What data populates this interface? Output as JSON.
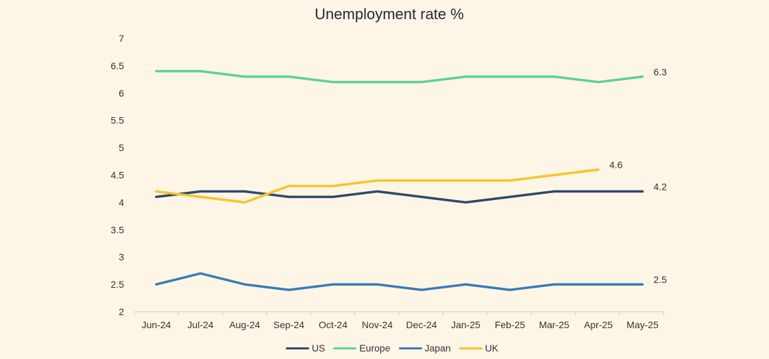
{
  "chart_data": {
    "type": "line",
    "title": "Unemployment rate %",
    "xlabel": "",
    "ylabel": "",
    "categories": [
      "Jun-24",
      "Jul-24",
      "Aug-24",
      "Sep-24",
      "Oct-24",
      "Nov-24",
      "Dec-24",
      "Jan-25",
      "Feb-25",
      "Mar-25",
      "Apr-25",
      "May-25"
    ],
    "ylim": [
      2,
      7
    ],
    "yticks": [
      "2",
      "2.5",
      "3",
      "3.5",
      "4",
      "4.5",
      "5",
      "5.5",
      "6",
      "6.5",
      "7"
    ],
    "grid": false,
    "legend_position": "bottom",
    "series": [
      {
        "name": "US",
        "color": "#2e4a6b",
        "values": [
          4.1,
          4.2,
          4.2,
          4.1,
          4.1,
          4.2,
          4.1,
          4.0,
          4.1,
          4.2,
          4.2,
          4.2
        ],
        "end_label": "4.2"
      },
      {
        "name": "Europe",
        "color": "#5cd19a",
        "values": [
          6.4,
          6.4,
          6.3,
          6.3,
          6.2,
          6.2,
          6.2,
          6.3,
          6.3,
          6.3,
          6.2,
          6.3
        ],
        "end_label": "6.3"
      },
      {
        "name": "Japan",
        "color": "#3c7ab5",
        "values": [
          2.5,
          2.7,
          2.5,
          2.4,
          2.5,
          2.5,
          2.4,
          2.5,
          2.4,
          2.5,
          2.5,
          2.5
        ],
        "end_label": "2.5"
      },
      {
        "name": "UK",
        "color": "#f5c52a",
        "values": [
          4.2,
          4.1,
          4.0,
          4.3,
          4.3,
          4.4,
          4.4,
          4.4,
          4.4,
          4.5,
          4.6,
          null
        ],
        "end_label": "4.6"
      }
    ]
  }
}
